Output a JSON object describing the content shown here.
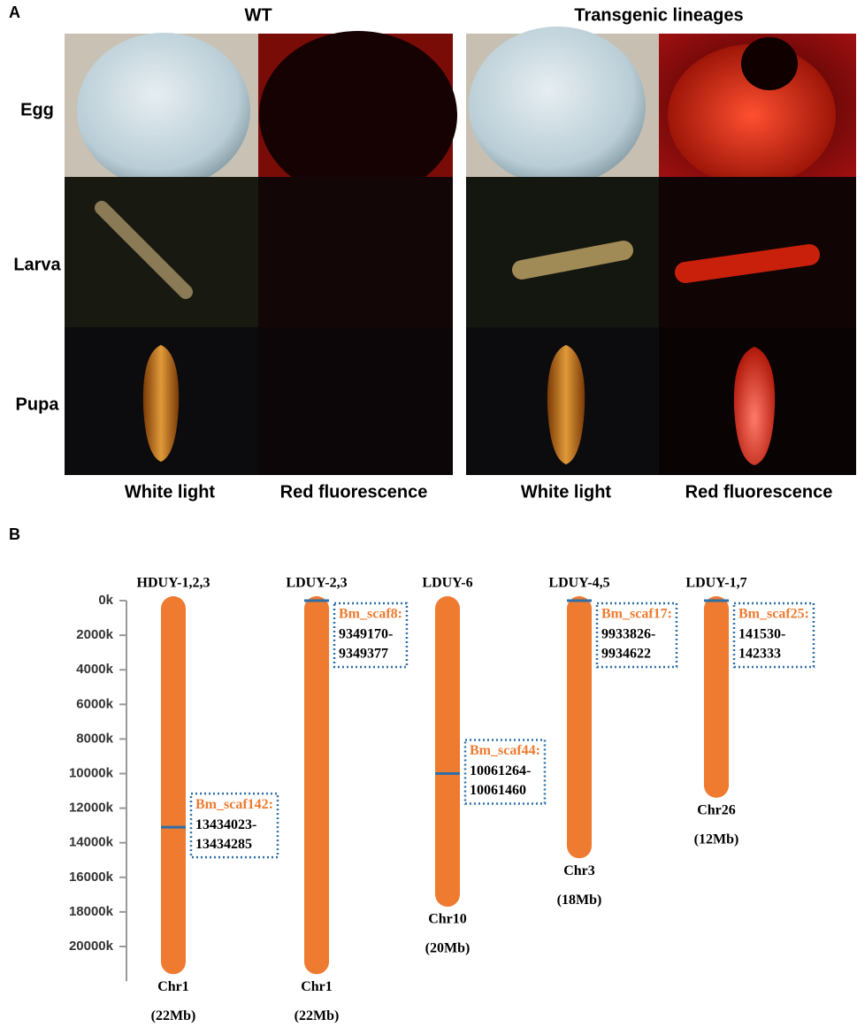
{
  "panel_a": {
    "label": "A",
    "groups": [
      "WT",
      "Transgenic lineages"
    ],
    "rows": [
      "Egg",
      "Larva",
      "Pupa"
    ],
    "columns": [
      "White light",
      "Red fluorescence",
      "White light",
      "Red fluorescence"
    ]
  },
  "panel_b": {
    "label": "B",
    "unit_ylim": [
      0,
      22000
    ],
    "yticks": [
      {
        "value": 0,
        "label": "0k"
      },
      {
        "value": 2000,
        "label": "2000k"
      },
      {
        "value": 4000,
        "label": "4000k"
      },
      {
        "value": 6000,
        "label": "6000k"
      },
      {
        "value": 8000,
        "label": "8000k"
      },
      {
        "value": 10000,
        "label": "10000k"
      },
      {
        "value": 12000,
        "label": "12000k"
      },
      {
        "value": 14000,
        "label": "14000k"
      },
      {
        "value": 16000,
        "label": "16000k"
      },
      {
        "value": 18000,
        "label": "18000k"
      },
      {
        "value": 20000,
        "label": "20000k"
      }
    ],
    "chromosomes": [
      {
        "lines": "HDUY-1,2,3",
        "name": "Chr1",
        "size": "(22Mb)",
        "length": 21600,
        "insertion": 13100,
        "scaffold": "Bm_scaf142:",
        "start": "13434023-",
        "end": "13434285"
      },
      {
        "lines": "LDUY-2,3",
        "name": "Chr1",
        "size": "(22Mb)",
        "length": 21600,
        "insertion": 0,
        "scaffold": "Bm_scaf8:",
        "start": "9349170-",
        "end": "9349377"
      },
      {
        "lines": "LDUY-6",
        "name": "Chr10",
        "size": "(20Mb)",
        "length": 17700,
        "insertion": 10000,
        "scaffold": "Bm_scaf44:",
        "start": "10061264-",
        "end": "10061460"
      },
      {
        "lines": "LDUY-4,5",
        "name": "Chr3",
        "size": "(18Mb)",
        "length": 14900,
        "insertion": 0,
        "scaffold": "Bm_scaf17:",
        "start": "9933826-",
        "end": "9934622"
      },
      {
        "lines": "LDUY-1,7",
        "name": "Chr26",
        "size": "(12Mb)",
        "length": 11400,
        "insertion": 0,
        "scaffold": "Bm_scaf25:",
        "start": "141530-",
        "end": "142333"
      }
    ]
  }
}
